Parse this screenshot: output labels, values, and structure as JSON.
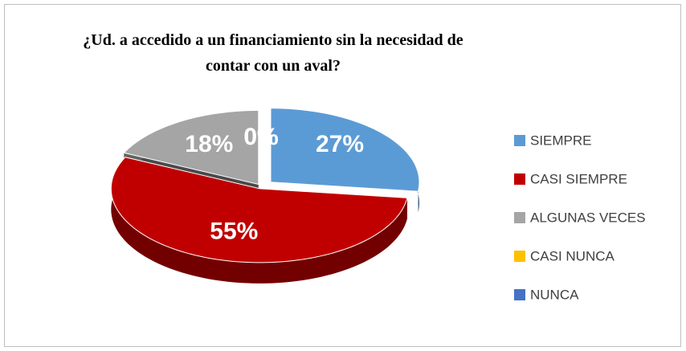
{
  "chart_data": {
    "type": "pie",
    "title": "¿Ud. a accedido a un financiamiento sin la necesidad de contar con un aval?",
    "categories": [
      "SIEMPRE",
      "CASI SIEMPRE",
      "ALGUNAS VECES",
      "CASI NUNCA",
      "NUNCA"
    ],
    "values": [
      27,
      55,
      18,
      0,
      0
    ],
    "value_labels": [
      "27%",
      "55%",
      "18%",
      "0%",
      "0%"
    ],
    "colors": [
      "#5b9bd5",
      "#c00000",
      "#a5a5a5",
      "#ffc000",
      "#4472c4"
    ],
    "legend": "right"
  }
}
